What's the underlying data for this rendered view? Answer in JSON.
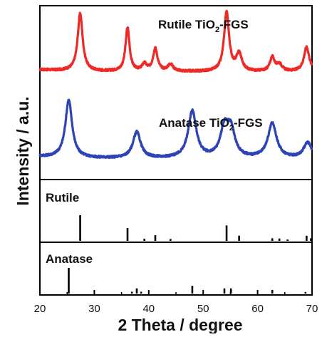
{
  "chart_data": {
    "type": "line",
    "xlabel": "2 Theta / degree",
    "ylabel": "Intensity / a.u.",
    "xlim": [
      20,
      70
    ],
    "x_ticks": [
      "20",
      "30",
      "40",
      "50",
      "60",
      "70"
    ],
    "y_tick_labels": false,
    "grid": false,
    "legend": "none",
    "panels": [
      {
        "name": "patterns",
        "series": [
          {
            "label_parts": [
              "Rutile TiO",
              "2",
              "-FGS"
            ],
            "color": "#ee2a26",
            "offset": 0.62,
            "peaks": [
              {
                "x": 27.4,
                "h": 0.33,
                "w": 0.55
              },
              {
                "x": 36.1,
                "h": 0.25,
                "w": 0.45
              },
              {
                "x": 39.2,
                "h": 0.04,
                "w": 0.5
              },
              {
                "x": 41.2,
                "h": 0.13,
                "w": 0.5
              },
              {
                "x": 44.0,
                "h": 0.04,
                "w": 0.6
              },
              {
                "x": 54.3,
                "h": 0.34,
                "w": 0.55
              },
              {
                "x": 56.6,
                "h": 0.1,
                "w": 0.6
              },
              {
                "x": 62.7,
                "h": 0.08,
                "w": 0.5
              },
              {
                "x": 64.0,
                "h": 0.04,
                "w": 0.6
              },
              {
                "x": 69.0,
                "h": 0.14,
                "w": 0.6
              }
            ]
          },
          {
            "label_parts": [
              "Anatase TiO",
              "2",
              "-FGS"
            ],
            "color": "#2e44b6",
            "offset": 0.12,
            "peaks": [
              {
                "x": 25.3,
                "h": 0.33,
                "w": 0.75
              },
              {
                "x": 37.8,
                "h": 0.15,
                "w": 0.85
              },
              {
                "x": 48.0,
                "h": 0.27,
                "w": 0.9
              },
              {
                "x": 53.9,
                "h": 0.16,
                "w": 0.9
              },
              {
                "x": 55.1,
                "h": 0.15,
                "w": 0.9
              },
              {
                "x": 62.7,
                "h": 0.2,
                "w": 0.95
              },
              {
                "x": 69.2,
                "h": 0.09,
                "w": 0.9
              }
            ]
          }
        ]
      },
      {
        "name": "Rutile",
        "type": "stick",
        "sticks": [
          {
            "x": 27.4,
            "h": 1.0
          },
          {
            "x": 36.1,
            "h": 0.5
          },
          {
            "x": 39.2,
            "h": 0.08
          },
          {
            "x": 41.2,
            "h": 0.22
          },
          {
            "x": 44.0,
            "h": 0.07
          },
          {
            "x": 54.3,
            "h": 0.6
          },
          {
            "x": 56.6,
            "h": 0.2
          },
          {
            "x": 62.7,
            "h": 0.1
          },
          {
            "x": 64.0,
            "h": 0.09
          },
          {
            "x": 65.5,
            "h": 0.05
          },
          {
            "x": 69.0,
            "h": 0.2
          },
          {
            "x": 69.8,
            "h": 0.1
          }
        ]
      },
      {
        "name": "Anatase",
        "type": "stick",
        "sticks": [
          {
            "x": 25.3,
            "h": 1.0
          },
          {
            "x": 36.9,
            "h": 0.07
          },
          {
            "x": 37.8,
            "h": 0.2
          },
          {
            "x": 38.6,
            "h": 0.07
          },
          {
            "x": 48.0,
            "h": 0.3
          },
          {
            "x": 53.9,
            "h": 0.2
          },
          {
            "x": 55.1,
            "h": 0.2
          },
          {
            "x": 62.7,
            "h": 0.14
          },
          {
            "x": 68.8,
            "h": 0.06
          },
          {
            "x": 70.3,
            "h": 0.06
          }
        ]
      }
    ]
  }
}
